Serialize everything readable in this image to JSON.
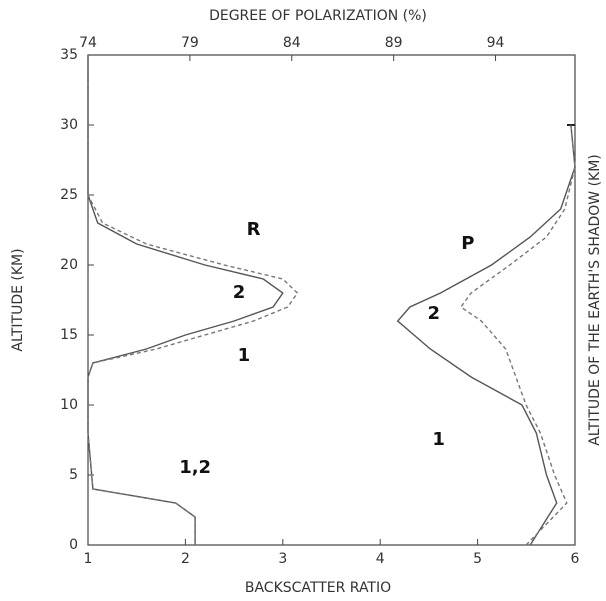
{
  "chart_data": {
    "type": "line",
    "xlabel": "BACKSCATTER RATIO",
    "x2label": "DEGREE OF POLARIZATION (%)",
    "ylabel": "ALTITUDE (KM)",
    "y2label": "ALTITUDE OF THE EARTH'S SHADOW (KM)",
    "xlim": [
      1,
      6
    ],
    "xticks": [
      1,
      2,
      3,
      4,
      5,
      6
    ],
    "x2lim": [
      74,
      97.9
    ],
    "x2ticks": [
      74,
      79,
      84,
      89,
      94
    ],
    "ylim": [
      0,
      35
    ],
    "yticks": [
      0,
      5,
      10,
      15,
      20,
      25,
      30,
      35
    ],
    "y2ticks": [
      30
    ],
    "series": [
      {
        "axis": "x",
        "dash": "none",
        "color": "#555",
        "x": [
          2.1,
          2.1,
          1.9,
          1.05,
          1.0,
          1.0,
          1.05,
          1.6,
          2.0,
          2.5,
          2.9,
          3.0,
          2.8,
          2.2,
          1.5,
          1.1,
          1.0,
          1.0
        ],
        "y": [
          0,
          2,
          3,
          4,
          8,
          12,
          13,
          14,
          15,
          16,
          17,
          18,
          19,
          20,
          21.5,
          23,
          25,
          35
        ]
      },
      {
        "axis": "x",
        "dash": "4 3",
        "color": "#777",
        "x": [
          2.1,
          2.1,
          1.9,
          1.05,
          1.0,
          1.0,
          1.05,
          1.7,
          2.2,
          2.7,
          3.05,
          3.15,
          3.0,
          2.4,
          1.6,
          1.15,
          1.0,
          1.0
        ],
        "y": [
          0,
          2,
          3,
          4,
          8,
          12,
          13,
          14,
          15,
          16,
          17,
          18,
          19,
          20,
          21.5,
          23,
          25,
          35
        ]
      },
      {
        "axis": "x2",
        "dash": "none",
        "color": "#555",
        "x": [
          95.7,
          97.0,
          96.5,
          96.0,
          95.3,
          92.8,
          90.8,
          89.2,
          89.8,
          91.3,
          93.8,
          95.7,
          97.2,
          97.9,
          97.7
        ],
        "y": [
          0,
          3,
          5,
          8,
          10,
          12,
          14,
          16,
          17,
          18,
          20,
          22,
          24,
          27,
          30
        ]
      },
      {
        "axis": "x2",
        "dash": "4 3",
        "color": "#777",
        "x": [
          95.5,
          97.5,
          96.9,
          96.2,
          95.5,
          95.0,
          94.5,
          93.3,
          92.3,
          92.8,
          94.7,
          96.5,
          97.4,
          97.9,
          97.7
        ],
        "y": [
          0,
          3,
          5,
          8,
          10,
          12,
          14,
          16,
          17,
          18,
          20,
          22,
          24,
          27,
          30
        ]
      }
    ],
    "annotations": [
      {
        "text": "R",
        "x": 2.7,
        "y": 22.5
      },
      {
        "text": "P",
        "x": 4.9,
        "y": 21.5
      },
      {
        "text": "2",
        "x": 2.55,
        "y": 18
      },
      {
        "text": "1",
        "x": 2.6,
        "y": 13.5
      },
      {
        "text": "2",
        "x": 4.55,
        "y": 16.5
      },
      {
        "text": "1",
        "x": 4.6,
        "y": 7.5
      },
      {
        "text": "1,2",
        "x": 2.1,
        "y": 5.5
      }
    ]
  }
}
